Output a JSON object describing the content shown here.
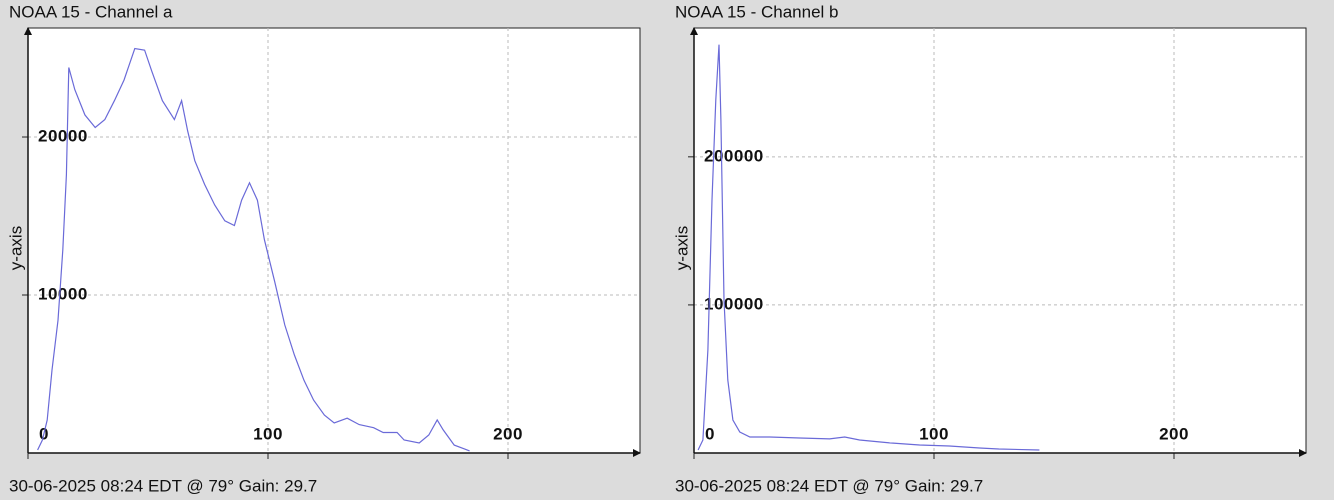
{
  "chart_data": [
    {
      "type": "line",
      "title": "NOAA 15 - Channel a",
      "ylabel": "y-axis",
      "footer": "30-06-2025 08:24 EDT @ 79° Gain: 29.7",
      "xlim": [
        0,
        255
      ],
      "ylim": [
        0,
        26900
      ],
      "xticks": [
        0,
        100,
        200
      ],
      "yticks": [
        10000,
        20000
      ],
      "grid": true,
      "series": [
        {
          "color": "#6a6ad8",
          "x": [
            4,
            6,
            8,
            10,
            12.5,
            14.5,
            16,
            17,
            19.5,
            23.7,
            28,
            32,
            36,
            40,
            44.5,
            48.6,
            51.5,
            56,
            61,
            64,
            66.5,
            69.5,
            73.6,
            77.8,
            82,
            86,
            89,
            92.3,
            95.6,
            98.5,
            102.7,
            107,
            111,
            115,
            119,
            123.5,
            127.6,
            133,
            138,
            144,
            148,
            153.8,
            156.7,
            163,
            167,
            170.5,
            173,
            177.6,
            182,
            184
          ],
          "values": [
            190,
            820,
            2090,
            5250,
            8400,
            12850,
            17600,
            24400,
            23000,
            21400,
            20600,
            21100,
            22300,
            23600,
            25600,
            25500,
            24200,
            22300,
            21100,
            22300,
            20400,
            18500,
            17000,
            15700,
            14700,
            14400,
            16000,
            17100,
            16000,
            13500,
            10900,
            8100,
            6200,
            4600,
            3350,
            2400,
            1900,
            2200,
            1800,
            1600,
            1300,
            1300,
            820,
            630,
            1140,
            2090,
            1460,
            500,
            250,
            130
          ]
        }
      ]
    },
    {
      "type": "line",
      "title": "NOAA 15 - Channel b",
      "ylabel": "y-axis",
      "footer": "30-06-2025 08:24 EDT @ 79° Gain: 29.7",
      "xlim": [
        0,
        255
      ],
      "ylim": [
        0,
        287000
      ],
      "xticks": [
        0,
        100,
        200
      ],
      "yticks": [
        100000,
        200000
      ],
      "grid": true,
      "series": [
        {
          "color": "#6a6ad8",
          "x": [
            1.7,
            3.7,
            5.8,
            7.5,
            9.1,
            10.4,
            11.2,
            12.5,
            14.1,
            16.2,
            19.1,
            23.3,
            31.6,
            44,
            56.5,
            62.8,
            69,
            81.5,
            94,
            106.4,
            119,
            127,
            143.9
          ],
          "values": [
            2000,
            8800,
            69600,
            171000,
            238500,
            275700,
            225000,
            103400,
            49300,
            22300,
            14200,
            10800,
            10800,
            10100,
            9500,
            10800,
            8800,
            6800,
            5400,
            4700,
            3400,
            2700,
            2000
          ]
        }
      ]
    }
  ]
}
